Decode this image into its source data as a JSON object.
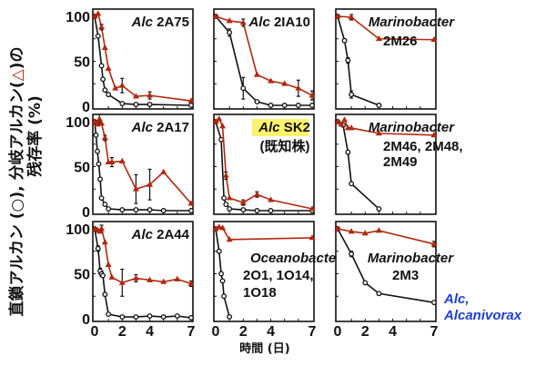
{
  "chart_data": {
    "type": "line",
    "layout": "3x3 grid of small-multiple line plots",
    "ylabel_line1": "直鎖アルカン (○), 分岐アルカン(△)の",
    "ylabel_tri": "△",
    "ylabel_line2": "残存率 (%)",
    "xlabel": "時間 (日)",
    "xlim": [
      0,
      7
    ],
    "ylim": [
      0,
      100
    ],
    "xticks": [
      "0",
      "2",
      "4",
      "7"
    ],
    "xtick_values": [
      0,
      2,
      4,
      7
    ],
    "yticks": [
      "0",
      "50",
      "100"
    ],
    "ytick_values": [
      0,
      50,
      100
    ],
    "series_styles": {
      "linear": {
        "name": "直鎖アルカン",
        "marker": "circle",
        "color": "#111111"
      },
      "branched": {
        "name": "分岐アルカン",
        "marker": "triangle",
        "color": "#b0280f"
      }
    },
    "footnote": {
      "line1": "Alc,",
      "line2": "Alcanivorax",
      "color": "#1f3fd6"
    },
    "panels": [
      {
        "id": "2A75",
        "title_italic": "Alc",
        "title_rest": " 2A75",
        "subtitle": [],
        "linear": {
          "x": [
            0,
            0.25,
            0.5,
            0.6,
            0.75,
            1,
            2,
            3,
            4,
            7
          ],
          "y": [
            100,
            78,
            45,
            30,
            18,
            13,
            3,
            2,
            2,
            1
          ]
        },
        "branched": {
          "x": [
            0,
            0.25,
            0.5,
            0.75,
            1,
            1.5,
            2,
            3,
            4,
            7
          ],
          "y": [
            100,
            103,
            88,
            65,
            42,
            20,
            23,
            11,
            12,
            6
          ],
          "err": [
            0,
            0,
            3,
            0,
            0,
            0,
            8,
            0,
            4,
            0
          ]
        }
      },
      {
        "id": "2IA10",
        "title_italic": "Alc",
        "title_rest": " 2IA10",
        "subtitle": [],
        "linear": {
          "x": [
            0,
            1,
            2,
            3,
            4,
            5,
            6,
            7
          ],
          "y": [
            100,
            82,
            20,
            5,
            1,
            1,
            1,
            1
          ],
          "err": [
            0,
            4,
            12,
            0,
            0,
            0,
            0,
            0
          ]
        },
        "branched": {
          "x": [
            0,
            1,
            2,
            3,
            4,
            5,
            6,
            7
          ],
          "y": [
            100,
            95,
            93,
            35,
            28,
            25,
            20,
            12
          ],
          "err": [
            0,
            0,
            4,
            0,
            0,
            0,
            9,
            5
          ]
        }
      },
      {
        "id": "2M26",
        "title_italic": "Marinobacter",
        "title_rest": "",
        "subtitle": [
          "2M26"
        ],
        "linear": {
          "x": [
            0,
            0.5,
            0.75,
            1,
            3
          ],
          "y": [
            100,
            73,
            51,
            13,
            1
          ],
          "err": [
            0,
            0,
            3,
            4,
            0
          ]
        },
        "branched": {
          "x": [
            0,
            1,
            3,
            7
          ],
          "y": [
            100,
            99,
            75,
            74
          ],
          "err": [
            0,
            3,
            0,
            0
          ]
        }
      },
      {
        "id": "2A17",
        "title_italic": "Alc",
        "title_rest": " 2A17",
        "subtitle": [],
        "linear": {
          "x": [
            0,
            0.1,
            0.2,
            0.3,
            0.4,
            0.5,
            0.75,
            1,
            2,
            3,
            4,
            5,
            7
          ],
          "y": [
            100,
            85,
            67,
            53,
            36,
            15,
            8,
            3,
            2,
            2,
            2,
            1,
            1
          ]
        },
        "branched": {
          "x": [
            0,
            0.2,
            0.35,
            0.5,
            0.75,
            1,
            1.25,
            2,
            3,
            4,
            5,
            7
          ],
          "y": [
            100,
            97,
            103,
            98,
            82,
            55,
            55,
            56,
            25,
            30,
            44,
            9
          ],
          "err": [
            0,
            0,
            5,
            0,
            3,
            0,
            5,
            0,
            16,
            17,
            0,
            0
          ]
        }
      },
      {
        "id": "SK2",
        "title_italic": "Alc",
        "title_rest": " SK2",
        "subtitle": [
          "(既知株)"
        ],
        "highlight": "#fff36b",
        "subtitle_color": "#a02e0a",
        "linear": {
          "x": [
            0,
            0.4,
            0.6,
            0.75,
            1,
            2,
            3,
            4,
            7
          ],
          "y": [
            100,
            80,
            15,
            8,
            3,
            2,
            1,
            1,
            1
          ]
        },
        "branched": {
          "x": [
            0,
            0.25,
            0.5,
            0.75,
            1,
            2,
            3,
            4,
            7
          ],
          "y": [
            100,
            103,
            95,
            40,
            15,
            10,
            19,
            13,
            3
          ],
          "err": [
            0,
            0,
            0,
            4,
            0,
            3,
            3,
            0,
            0
          ]
        }
      },
      {
        "id": "2M46",
        "title_italic": "Marinobacter",
        "title_rest": "",
        "subtitle": [
          "2M46, 2M48,",
          "2M49"
        ],
        "linear": {
          "x": [
            0,
            0.4,
            0.75,
            1,
            3
          ],
          "y": [
            100,
            96,
            66,
            31,
            3
          ]
        },
        "branched": {
          "x": [
            0,
            0.25,
            0.5,
            0.75,
            1,
            3,
            7
          ],
          "y": [
            100,
            97,
            102,
            93,
            93,
            87,
            85
          ]
        }
      },
      {
        "id": "2A44",
        "title_italic": "Alc",
        "title_rest": " 2A44",
        "subtitle": [],
        "linear": {
          "x": [
            0,
            0.25,
            0.4,
            0.5,
            0.6,
            0.75,
            1,
            2,
            3,
            4,
            5,
            6,
            7
          ],
          "y": [
            100,
            78,
            53,
            50,
            48,
            27,
            5,
            2,
            2,
            3,
            2,
            3,
            1
          ],
          "err": [
            0,
            3,
            3,
            3,
            0,
            0,
            0,
            0,
            0,
            0,
            0,
            0,
            0
          ]
        },
        "branched": {
          "x": [
            0,
            0.25,
            0.4,
            0.5,
            0.75,
            1,
            1.25,
            2,
            3,
            4,
            5,
            6,
            7
          ],
          "y": [
            100,
            98,
            97,
            100,
            85,
            60,
            46,
            40,
            45,
            43,
            41,
            44,
            39
          ],
          "err": [
            0,
            0,
            0,
            4,
            0,
            0,
            0,
            15,
            4,
            0,
            0,
            0,
            3
          ]
        }
      },
      {
        "id": "Oceanobacter",
        "title_italic": "",
        "title_rest": "",
        "subtitle": [],
        "overlay_italic": "Oceanobacter",
        "overlay_lines": [
          "2O1, 1O14,",
          "1O18"
        ],
        "linear": {
          "x": [
            0,
            0.25,
            0.4,
            0.5,
            0.6,
            1
          ],
          "y": [
            100,
            75,
            50,
            42,
            25,
            2
          ]
        },
        "branched": {
          "x": [
            0,
            0.25,
            0.5,
            1,
            7
          ],
          "y": [
            100,
            102,
            101,
            88,
            90
          ]
        }
      },
      {
        "id": "2M3",
        "title_italic": "",
        "title_rest": "",
        "subtitle": [],
        "overlay_italic": "Marinobacter",
        "overlay_lines": [
          "2M3"
        ],
        "linear": {
          "x": [
            0,
            1,
            2,
            3,
            7
          ],
          "y": [
            100,
            72,
            40,
            28,
            18
          ],
          "err": [
            0,
            3,
            0,
            0,
            0
          ]
        },
        "branched": {
          "x": [
            0,
            1,
            2,
            3,
            7
          ],
          "y": [
            100,
            97,
            95,
            98,
            83
          ],
          "err": [
            0,
            0,
            0,
            0,
            3
          ]
        }
      }
    ]
  }
}
